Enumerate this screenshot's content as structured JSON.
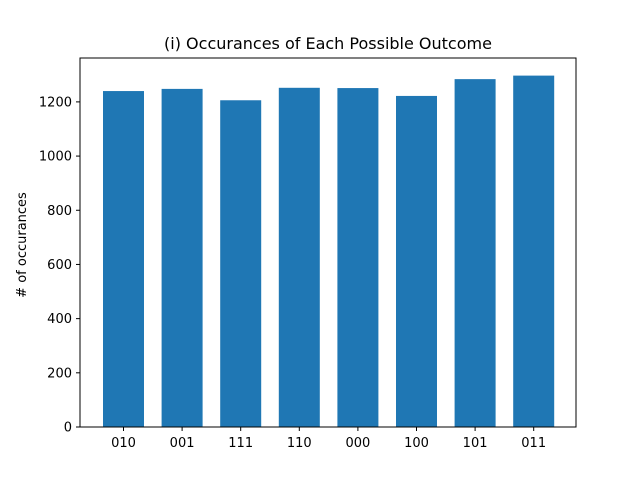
{
  "chart_data": {
    "type": "bar",
    "title": "(i) Occurances of Each Possible Outcome",
    "xlabel": "",
    "ylabel": "# of occurances",
    "categories": [
      "010",
      "001",
      "111",
      "110",
      "000",
      "100",
      "101",
      "011"
    ],
    "values": [
      1240,
      1248,
      1206,
      1252,
      1251,
      1222,
      1284,
      1297
    ],
    "ylim": [
      0,
      1362
    ],
    "yticks": [
      0,
      200,
      400,
      600,
      800,
      1000,
      1200
    ],
    "ytick_labels": [
      "0",
      "200",
      "400",
      "600",
      "800",
      "1000",
      "1200"
    ],
    "grid": false,
    "legend": "none",
    "bar_color": "#1f77b4"
  }
}
